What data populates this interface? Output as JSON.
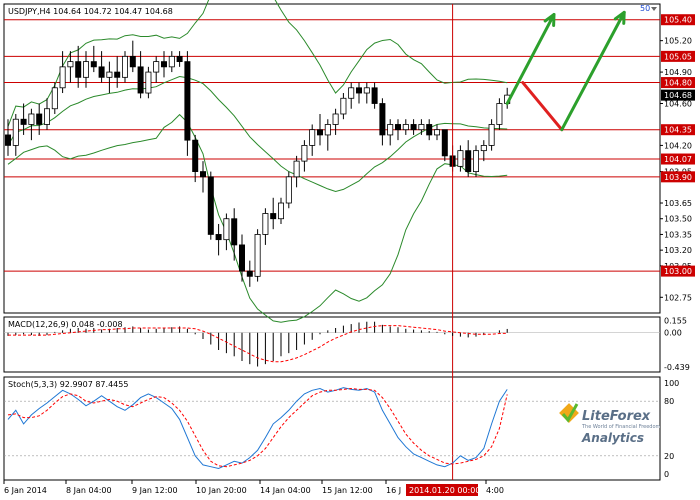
{
  "header": {
    "symbol": "USDJPY,H4",
    "ohlc": "104.64 104.72 104.47 104.68",
    "macd_label": "MACD(12,26,9) 0.048 -0.008",
    "stoch_label": "Stoch(5,3,3) 92.9907 87.4455",
    "corner_value": "50"
  },
  "time_axis": {
    "labels": [
      "6 Jan 2014",
      "8 Jan 04:00",
      "9 Jan 12:00",
      "10 Jan 20:00",
      "14 Jan 04:00",
      "15 Jan 12:00",
      "16 J",
      "2014.01.20 00:00",
      "4:00"
    ]
  },
  "chart_data": [
    {
      "type": "candlestick",
      "title": "USDJPY,H4",
      "ylim": [
        102.6,
        105.55
      ],
      "y_ticks": [
        105.4,
        105.2,
        105.05,
        104.9,
        104.8,
        104.68,
        104.6,
        104.35,
        104.2,
        104.07,
        103.95,
        103.9,
        103.65,
        103.5,
        103.35,
        103.2,
        103.05,
        103.0,
        102.75
      ],
      "levels": [
        105.4,
        105.05,
        104.8,
        104.35,
        104.07,
        103.9,
        103.0
      ],
      "current_price": 104.68,
      "candles": [
        [
          104.3,
          104.45,
          104.1,
          104.2
        ],
        [
          104.2,
          104.5,
          104.1,
          104.45
        ],
        [
          104.45,
          104.6,
          104.3,
          104.4
        ],
        [
          104.4,
          104.55,
          104.25,
          104.5
        ],
        [
          104.5,
          104.6,
          104.3,
          104.4
        ],
        [
          104.4,
          104.65,
          104.35,
          104.55
        ],
        [
          104.55,
          104.8,
          104.5,
          104.75
        ],
        [
          104.75,
          105.1,
          104.7,
          104.95
        ],
        [
          104.95,
          105.1,
          104.8,
          105.0
        ],
        [
          105.0,
          105.15,
          104.75,
          104.85
        ],
        [
          104.85,
          105.1,
          104.75,
          105.0
        ],
        [
          105.0,
          105.15,
          104.9,
          104.95
        ],
        [
          104.95,
          105.1,
          104.8,
          104.85
        ],
        [
          104.85,
          105.0,
          104.7,
          104.9
        ],
        [
          104.9,
          105.05,
          104.75,
          104.85
        ],
        [
          104.85,
          105.1,
          104.8,
          105.05
        ],
        [
          105.05,
          105.2,
          104.9,
          104.95
        ],
        [
          104.95,
          105.1,
          104.65,
          104.7
        ],
        [
          104.7,
          104.95,
          104.65,
          104.9
        ],
        [
          104.9,
          105.05,
          104.8,
          105.0
        ],
        [
          105.0,
          105.1,
          104.85,
          104.95
        ],
        [
          104.95,
          105.1,
          104.9,
          105.05
        ],
        [
          105.05,
          105.1,
          104.95,
          105.0
        ],
        [
          105.0,
          105.1,
          104.1,
          104.25
        ],
        [
          104.25,
          104.3,
          103.85,
          103.95
        ],
        [
          103.95,
          104.05,
          103.75,
          103.9
        ],
        [
          103.9,
          103.95,
          103.3,
          103.35
        ],
        [
          103.35,
          103.45,
          103.15,
          103.3
        ],
        [
          103.3,
          103.55,
          103.2,
          103.5
        ],
        [
          103.5,
          103.6,
          103.1,
          103.25
        ],
        [
          103.25,
          103.35,
          102.9,
          103.0
        ],
        [
          103.0,
          103.1,
          102.85,
          102.95
        ],
        [
          102.95,
          103.4,
          102.9,
          103.35
        ],
        [
          103.35,
          103.6,
          103.25,
          103.55
        ],
        [
          103.55,
          103.7,
          103.4,
          103.5
        ],
        [
          103.5,
          103.7,
          103.45,
          103.65
        ],
        [
          103.65,
          103.95,
          103.6,
          103.9
        ],
        [
          103.9,
          104.1,
          103.8,
          104.05
        ],
        [
          104.05,
          104.25,
          103.95,
          104.2
        ],
        [
          104.2,
          104.4,
          104.1,
          104.35
        ],
        [
          104.35,
          104.5,
          104.2,
          104.3
        ],
        [
          104.3,
          104.45,
          104.15,
          104.4
        ],
        [
          104.4,
          104.55,
          104.3,
          104.5
        ],
        [
          104.5,
          104.7,
          104.45,
          104.65
        ],
        [
          104.65,
          104.8,
          104.55,
          104.75
        ],
        [
          104.75,
          104.8,
          104.6,
          104.7
        ],
        [
          104.7,
          104.8,
          104.6,
          104.75
        ],
        [
          104.75,
          104.8,
          104.55,
          104.6
        ],
        [
          104.6,
          104.65,
          104.2,
          104.3
        ],
        [
          104.3,
          104.45,
          104.2,
          104.4
        ],
        [
          104.4,
          104.45,
          104.25,
          104.35
        ],
        [
          104.35,
          104.45,
          104.3,
          104.4
        ],
        [
          104.4,
          104.45,
          104.3,
          104.35
        ],
        [
          104.35,
          104.45,
          104.3,
          104.4
        ],
        [
          104.4,
          104.45,
          104.25,
          104.3
        ],
        [
          104.3,
          104.4,
          104.25,
          104.35
        ],
        [
          104.35,
          104.35,
          104.05,
          104.1
        ],
        [
          104.1,
          104.2,
          103.95,
          104.0
        ],
        [
          104.0,
          104.2,
          103.95,
          104.15
        ],
        [
          104.15,
          104.25,
          103.9,
          103.95
        ],
        [
          103.95,
          104.2,
          103.9,
          104.15
        ],
        [
          104.15,
          104.25,
          104.05,
          104.2
        ],
        [
          104.2,
          104.45,
          104.15,
          104.4
        ],
        [
          104.4,
          104.65,
          104.35,
          104.6
        ],
        [
          104.6,
          104.75,
          104.55,
          104.68
        ]
      ],
      "forecast_path": [
        {
          "bar": 66,
          "price": 104.8,
          "color": "#e02020"
        },
        {
          "bar": 71,
          "price": 104.35,
          "color": "#e02020"
        },
        {
          "bar": 79,
          "price": 105.47,
          "color": "#2ca02c"
        }
      ],
      "forecast_alt": [
        {
          "bar": 64,
          "price": 104.6
        },
        {
          "bar": 70,
          "price": 105.45
        }
      ],
      "colors": {
        "level": "#cc0000",
        "bollinger": "#2b8a2b",
        "candle_up": "#ffffff",
        "candle_down": "#000000"
      }
    },
    {
      "type": "macd",
      "title": "MACD(12,26,9) 0.048 -0.008",
      "ylim": [
        -0.5,
        0.2
      ],
      "y_ticks": [
        0.155,
        0.0,
        -0.439
      ],
      "histogram": [
        -0.04,
        -0.03,
        -0.02,
        -0.03,
        -0.04,
        -0.03,
        0.01,
        0.03,
        0.05,
        0.06,
        0.05,
        0.06,
        0.04,
        0.05,
        0.06,
        0.07,
        0.08,
        0.06,
        0.04,
        0.05,
        0.06,
        0.07,
        0.08,
        0.05,
        -0.02,
        -0.08,
        -0.15,
        -0.22,
        -0.26,
        -0.3,
        -0.36,
        -0.4,
        -0.43,
        -0.4,
        -0.36,
        -0.3,
        -0.26,
        -0.22,
        -0.15,
        -0.09,
        -0.02,
        0.03,
        0.06,
        0.09,
        0.11,
        0.13,
        0.14,
        0.14,
        0.1,
        0.08,
        0.07,
        0.05,
        0.04,
        0.03,
        0.02,
        0.01,
        -0.02,
        -0.04,
        -0.05,
        -0.06,
        -0.05,
        -0.03,
        0.0,
        0.03,
        0.048
      ],
      "signal": [
        -0.03,
        -0.03,
        -0.03,
        -0.03,
        -0.03,
        -0.03,
        -0.02,
        -0.01,
        0.0,
        0.01,
        0.02,
        0.03,
        0.04,
        0.04,
        0.05,
        0.05,
        0.06,
        0.06,
        0.06,
        0.06,
        0.06,
        0.06,
        0.06,
        0.06,
        0.05,
        0.02,
        -0.02,
        -0.07,
        -0.12,
        -0.17,
        -0.22,
        -0.27,
        -0.32,
        -0.35,
        -0.37,
        -0.37,
        -0.35,
        -0.32,
        -0.28,
        -0.23,
        -0.18,
        -0.12,
        -0.07,
        -0.03,
        0.01,
        0.04,
        0.06,
        0.08,
        0.09,
        0.09,
        0.09,
        0.08,
        0.07,
        0.06,
        0.05,
        0.04,
        0.02,
        0.01,
        0.0,
        -0.01,
        -0.02,
        -0.02,
        -0.02,
        -0.01,
        -0.008
      ],
      "colors": {
        "histogram": "#000000",
        "signal": "#ff0000"
      }
    },
    {
      "type": "stochastic",
      "title": "Stoch(5,3,3) 92.9907 87.4455",
      "ylim": [
        0,
        100
      ],
      "y_ticks": [
        100,
        80,
        20,
        0
      ],
      "main": [
        60,
        70,
        55,
        65,
        72,
        78,
        85,
        92,
        88,
        82,
        75,
        80,
        86,
        80,
        74,
        70,
        76,
        84,
        88,
        84,
        78,
        72,
        60,
        40,
        20,
        10,
        8,
        6,
        10,
        14,
        12,
        18,
        26,
        40,
        55,
        62,
        70,
        80,
        88,
        92,
        94,
        90,
        92,
        95,
        93,
        92,
        94,
        90,
        70,
        55,
        40,
        30,
        22,
        18,
        14,
        10,
        8,
        12,
        20,
        15,
        18,
        28,
        55,
        80,
        92.99
      ],
      "signal": [
        65,
        66,
        62,
        62,
        64,
        70,
        78,
        85,
        88,
        86,
        80,
        78,
        80,
        82,
        80,
        76,
        74,
        78,
        82,
        85,
        84,
        78,
        70,
        58,
        42,
        26,
        14,
        9,
        8,
        10,
        12,
        15,
        20,
        28,
        40,
        52,
        62,
        70,
        78,
        86,
        90,
        92,
        92,
        93,
        94,
        93,
        93,
        92,
        84,
        72,
        58,
        44,
        34,
        26,
        20,
        16,
        12,
        11,
        12,
        14,
        16,
        20,
        30,
        50,
        87.45
      ],
      "colors": {
        "main": "#1f77d4",
        "signal": "#ff0000"
      }
    }
  ],
  "watermark": {
    "brand_line1": "LiteForex",
    "brand_line2": "The World of Financial Freedom",
    "brand_line3": "Analytics"
  }
}
